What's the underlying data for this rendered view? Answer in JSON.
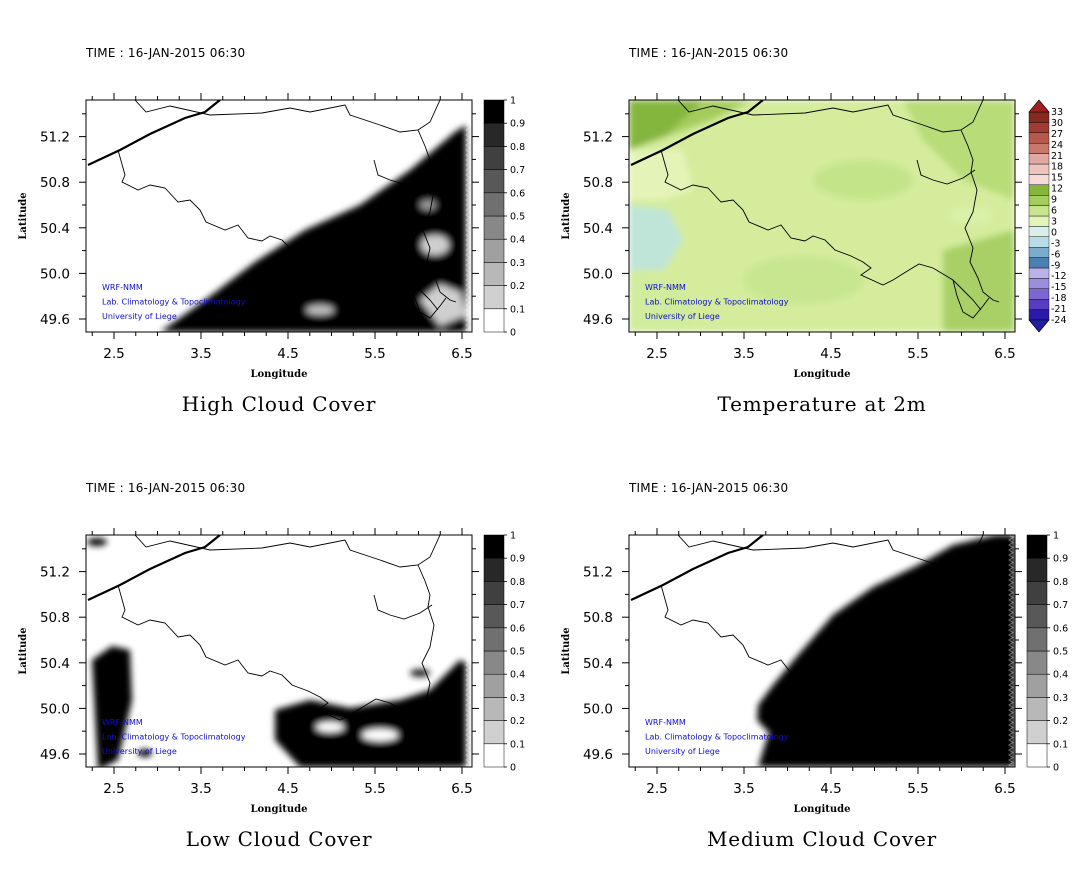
{
  "panels": [
    {
      "time": "TIME : 16-JAN-2015 06:30",
      "title": "High Cloud Cover",
      "field": "high",
      "credit": [
        "WRF-NMM",
        "Lab. Climatology & Topoclimatology",
        "University of Liege"
      ],
      "xlabel": "Longitude",
      "ylabel": "Latitude",
      "xticks": [
        "2.5",
        "3.5",
        "4.5",
        "5.5",
        "6.5"
      ],
      "yticks": [
        "49.6",
        "50.0",
        "50.4",
        "50.8",
        "51.2"
      ],
      "colorbar_labels": [
        "0",
        "0.1",
        "0.2",
        "0.3",
        "0.4",
        "0.5",
        "0.6",
        "0.7",
        "0.8",
        "0.9",
        "1"
      ]
    },
    {
      "time": "TIME : 16-JAN-2015 06:30",
      "title": "Temperature at 2m",
      "field": "temp",
      "credit": [
        "WRF-NMM",
        "Lab. Climatology & Topoclimatology",
        "University of Liege"
      ],
      "xlabel": "Longitude",
      "ylabel": "Latitude",
      "xticks": [
        "2.5",
        "3.5",
        "4.5",
        "5.5",
        "6.5"
      ],
      "yticks": [
        "49.6",
        "50.0",
        "50.4",
        "50.8",
        "51.2"
      ],
      "colorbar_labels": [
        "-24",
        "-21",
        "-18",
        "-15",
        "-12",
        "-9",
        "-6",
        "-3",
        "0",
        "3",
        "6",
        "9",
        "12",
        "15",
        "18",
        "21",
        "24",
        "27",
        "30",
        "33"
      ]
    },
    {
      "time": "TIME : 16-JAN-2015 06:30",
      "title": "Low Cloud Cover",
      "field": "low",
      "credit": [
        "WRF-NMM",
        "Lab. Climatology & Topoclimatology",
        "University of Liege"
      ],
      "xlabel": "Longitude",
      "ylabel": "Latitude",
      "xticks": [
        "2.5",
        "3.5",
        "4.5",
        "5.5",
        "6.5"
      ],
      "yticks": [
        "49.6",
        "50.0",
        "50.4",
        "50.8",
        "51.2"
      ],
      "colorbar_labels": [
        "0",
        "0.1",
        "0.2",
        "0.3",
        "0.4",
        "0.5",
        "0.6",
        "0.7",
        "0.8",
        "0.9",
        "1"
      ]
    },
    {
      "time": "TIME : 16-JAN-2015 06:30",
      "title": "Medium Cloud Cover",
      "field": "medium",
      "credit": [
        "WRF-NMM",
        "Lab. Climatology & Topoclimatology",
        "University of Liege"
      ],
      "xlabel": "Longitude",
      "ylabel": "Latitude",
      "xticks": [
        "2.5",
        "3.5",
        "4.5",
        "5.5",
        "6.5"
      ],
      "yticks": [
        "49.6",
        "50.0",
        "50.4",
        "50.8",
        "51.2"
      ],
      "colorbar_labels": [
        "0",
        "0.1",
        "0.2",
        "0.3",
        "0.4",
        "0.5",
        "0.6",
        "0.7",
        "0.8",
        "0.9",
        "1"
      ]
    }
  ],
  "colors": {
    "cloud_cover_scale": [
      "#ffffff",
      "#e8e8e8",
      "#d0d0d0",
      "#b8b8b8",
      "#a0a0a0",
      "#888888",
      "#707070",
      "#585858",
      "#404040",
      "#282828",
      "#000000"
    ],
    "temperature_scale": [
      "#2a1aa8",
      "#5a3cc0",
      "#7c68d0",
      "#9c8ede",
      "#bcb2ea",
      "#4a7fb4",
      "#7aaccc",
      "#b8dce8",
      "#d8f0e8",
      "#e2f4b8",
      "#c8e48c",
      "#a4cc5c",
      "#84b63c",
      "#f6dcd8",
      "#ecc4bc",
      "#e0a8a0",
      "#c8786c",
      "#b45a4c",
      "#a03c34",
      "#882820"
    ],
    "credit_text": "#1010c8"
  }
}
